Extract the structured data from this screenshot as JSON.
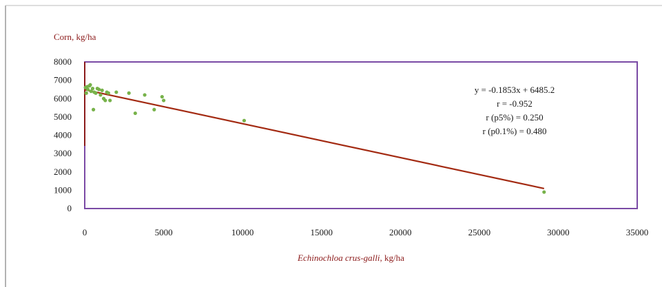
{
  "chart_data": {
    "type": "scatter",
    "ylabel": "Corn, kg/ha",
    "xlabel_italic": "Echinochloa crus-galli",
    "xlabel_rest": ", kg/ha",
    "xlim": [
      0,
      35000
    ],
    "ylim": [
      0,
      8000
    ],
    "x_ticks": [
      "0",
      "5000",
      "10000",
      "15000",
      "20000",
      "25000",
      "30000",
      "35000"
    ],
    "y_ticks": [
      "0",
      "1000",
      "2000",
      "3000",
      "4000",
      "5000",
      "6000",
      "7000",
      "8000"
    ],
    "grid": false,
    "points": [
      {
        "x": 50,
        "y": 6600
      },
      {
        "x": 100,
        "y": 6300
      },
      {
        "x": 150,
        "y": 6650
      },
      {
        "x": 200,
        "y": 6500
      },
      {
        "x": 300,
        "y": 6700
      },
      {
        "x": 350,
        "y": 6750
      },
      {
        "x": 400,
        "y": 6400
      },
      {
        "x": 500,
        "y": 6550
      },
      {
        "x": 550,
        "y": 5400
      },
      {
        "x": 600,
        "y": 6350
      },
      {
        "x": 700,
        "y": 6300
      },
      {
        "x": 800,
        "y": 6550
      },
      {
        "x": 900,
        "y": 6500
      },
      {
        "x": 1000,
        "y": 6200
      },
      {
        "x": 1100,
        "y": 6450
      },
      {
        "x": 1200,
        "y": 6000
      },
      {
        "x": 1300,
        "y": 5900
      },
      {
        "x": 1400,
        "y": 6350
      },
      {
        "x": 1500,
        "y": 6300
      },
      {
        "x": 1600,
        "y": 5900
      },
      {
        "x": 2000,
        "y": 6350
      },
      {
        "x": 2800,
        "y": 6300
      },
      {
        "x": 3200,
        "y": 5200
      },
      {
        "x": 3800,
        "y": 6200
      },
      {
        "x": 4400,
        "y": 5400
      },
      {
        "x": 4900,
        "y": 6100
      },
      {
        "x": 5000,
        "y": 5900
      },
      {
        "x": 10100,
        "y": 4800
      },
      {
        "x": 29100,
        "y": 900
      }
    ],
    "trendline": {
      "slope": -0.1853,
      "intercept": 6485.2,
      "x_range": [
        0,
        29100
      ]
    },
    "annotations": [
      "y = -0.1853x + 6485.2",
      "r = -0.952",
      "r (p5%) = 0.250",
      "r (p0.1%)  = 0.480"
    ],
    "colors": {
      "points": "#77b24a",
      "trendline": "#a32a12",
      "plot_border": "#7a4aa5",
      "y_axis": "#8b1a1a",
      "label_text": "#8b1a1a"
    }
  }
}
